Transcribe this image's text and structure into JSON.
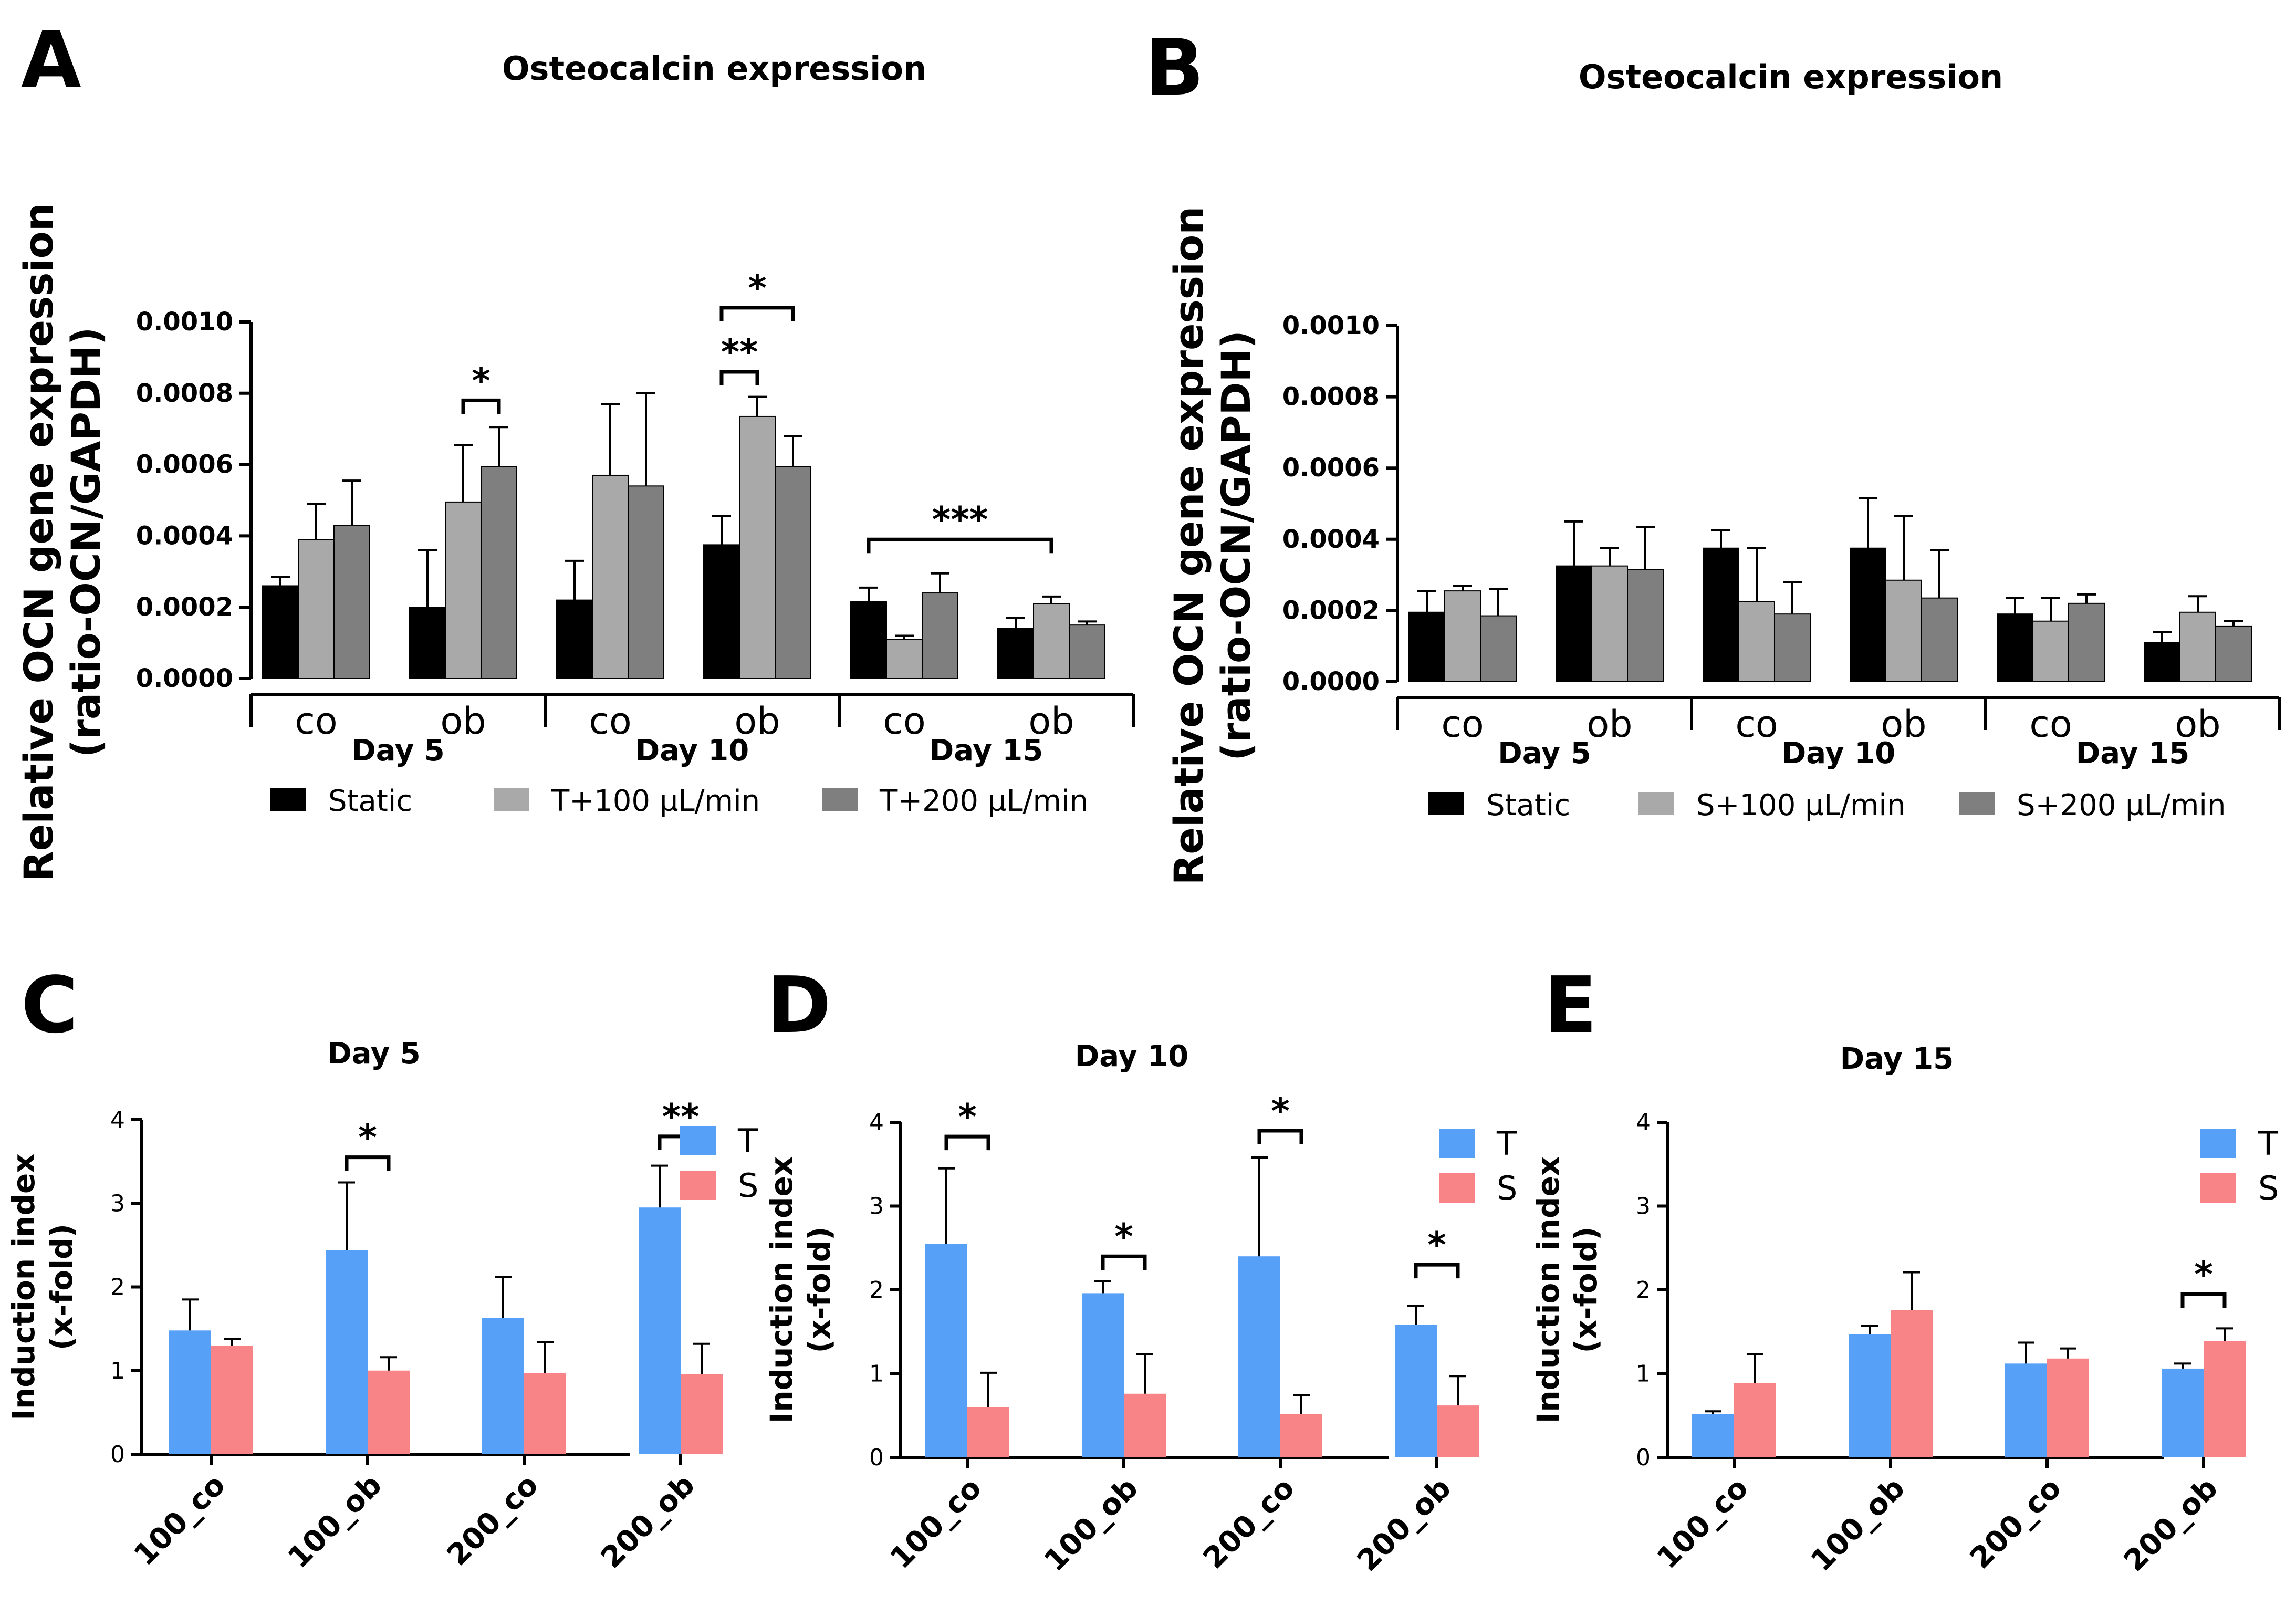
{
  "colors": {
    "static": "#000000",
    "light_gray": "#a9a9a9",
    "dark_gray": "#7f7f7f",
    "T": "#56a0f8",
    "S": "#f98487"
  },
  "panels": {
    "A": {
      "letter": "A"
    },
    "B": {
      "letter": "B"
    },
    "C": {
      "letter": "C"
    },
    "D": {
      "letter": "D"
    },
    "E": {
      "letter": "E"
    }
  },
  "chart_data": [
    {
      "id": "A",
      "type": "bar",
      "title": "Osteocalcin expression",
      "ylabel": [
        "Relative OCN gene expression",
        "(ratio-OCN/GAPDH)"
      ],
      "ylim": [
        0,
        0.001
      ],
      "yticks": [
        "0.0000",
        "0.0002",
        "0.0004",
        "0.0006",
        "0.0008",
        "0.0010"
      ],
      "categories": [
        "co",
        "ob",
        "co",
        "ob",
        "co",
        "ob"
      ],
      "days": [
        "Day 5",
        "Day 10",
        "Day 15"
      ],
      "series": [
        {
          "name": "Static",
          "color": "#000000",
          "values": [
            0.00026,
            0.0002,
            0.00022,
            0.000375,
            0.000215,
            0.00014
          ],
          "errors": [
            2.5e-05,
            0.00016,
            0.00011,
            8e-05,
            4e-05,
            3e-05
          ]
        },
        {
          "name": "T+100 µL/min",
          "color": "#a9a9a9",
          "values": [
            0.00039,
            0.000495,
            0.00057,
            0.000735,
            0.00011,
            0.00021
          ],
          "errors": [
            0.0001,
            0.00016,
            0.0002,
            5.5e-05,
            1e-05,
            2e-05
          ]
        },
        {
          "name": "T+200 µL/min",
          "color": "#7f7f7f",
          "values": [
            0.00043,
            0.000595,
            0.00054,
            0.000595,
            0.00024,
            0.00015
          ],
          "errors": [
            0.000125,
            0.00011,
            0.00026,
            8.5e-05,
            5.5e-05,
            1e-05
          ]
        }
      ],
      "annotations": [
        {
          "label": "*",
          "category": 1,
          "from": 1,
          "to": 2,
          "y": 0.00078
        },
        {
          "label": "**",
          "category": 3,
          "from": 0,
          "to": 1,
          "y": 0.00086
        },
        {
          "label": "*",
          "category": 3,
          "from": 0,
          "to": 2,
          "y": 0.00104
        },
        {
          "label": "***",
          "category": 4,
          "from": 0,
          "to": 8,
          "y": 0.00039
        }
      ]
    },
    {
      "id": "B",
      "type": "bar",
      "title": "Osteocalcin expression",
      "ylabel": [
        "Relative OCN gene expression",
        "(ratio-OCN/GAPDH)"
      ],
      "ylim": [
        0,
        0.001
      ],
      "yticks": [
        "0.0000",
        "0.0002",
        "0.0004",
        "0.0006",
        "0.0008",
        "0.0010"
      ],
      "categories": [
        "co",
        "ob",
        "co",
        "ob",
        "co",
        "ob"
      ],
      "days": [
        "Day 5",
        "Day 10",
        "Day 15"
      ],
      "series": [
        {
          "name": "Static",
          "color": "#000000",
          "values": [
            0.000195,
            0.000325,
            0.000375,
            0.000375,
            0.00019,
            0.00011
          ],
          "errors": [
            6e-05,
            0.000125,
            5e-05,
            0.00014,
            4.5e-05,
            3e-05
          ]
        },
        {
          "name": "S+100 µL/min",
          "color": "#a9a9a9",
          "values": [
            0.000255,
            0.000325,
            0.000225,
            0.000285,
            0.00017,
            0.000195
          ],
          "errors": [
            1.5e-05,
            5e-05,
            0.00015,
            0.00018,
            6.5e-05,
            4.5e-05
          ]
        },
        {
          "name": "S+200 µL/min",
          "color": "#7f7f7f",
          "values": [
            0.000185,
            0.000315,
            0.00019,
            0.000235,
            0.00022,
            0.000155
          ],
          "errors": [
            7.5e-05,
            0.00012,
            9e-05,
            0.000135,
            2.5e-05,
            1.5e-05
          ]
        }
      ],
      "annotations": []
    },
    {
      "id": "C",
      "type": "bar",
      "title": "Day 5",
      "ylabel": [
        "Induction index",
        "(x-fold)"
      ],
      "ylim": [
        0,
        4
      ],
      "yticks": [
        "0",
        "1",
        "2",
        "3",
        "4"
      ],
      "categories": [
        "100_co",
        "100_ob",
        "200_co",
        "200_ob"
      ],
      "series": [
        {
          "name": "T",
          "color": "#56a0f8",
          "values": [
            1.48,
            2.44,
            1.63,
            2.95
          ],
          "errors": [
            0.37,
            0.81,
            0.49,
            0.5
          ]
        },
        {
          "name": "S",
          "color": "#f98487",
          "values": [
            1.3,
            1.0,
            0.97,
            0.96
          ],
          "errors": [
            0.08,
            0.16,
            0.37,
            0.36
          ]
        }
      ],
      "annotations": [
        {
          "label": "*",
          "category": 1,
          "y": 3.55
        },
        {
          "label": "**",
          "category": 3,
          "y": 3.8
        }
      ]
    },
    {
      "id": "D",
      "type": "bar",
      "title": "Day 10",
      "ylabel": [
        "Induction index",
        "(x-fold)"
      ],
      "ylim": [
        0,
        4
      ],
      "yticks": [
        "0",
        "1",
        "2",
        "3",
        "4"
      ],
      "categories": [
        "100_co",
        "100_ob",
        "200_co",
        "200_ob"
      ],
      "series": [
        {
          "name": "T",
          "color": "#56a0f8",
          "values": [
            2.55,
            1.96,
            2.4,
            1.58
          ],
          "errors": [
            0.9,
            0.14,
            1.18,
            0.23
          ]
        },
        {
          "name": "S",
          "color": "#f98487",
          "values": [
            0.6,
            0.76,
            0.52,
            0.62
          ],
          "errors": [
            0.41,
            0.47,
            0.22,
            0.35
          ]
        }
      ],
      "annotations": [
        {
          "label": "*",
          "category": 0,
          "y": 3.83
        },
        {
          "label": "*",
          "category": 1,
          "y": 2.4
        },
        {
          "label": "*",
          "category": 2,
          "y": 3.9
        },
        {
          "label": "*",
          "category": 3,
          "y": 2.3
        }
      ]
    },
    {
      "id": "E",
      "type": "bar",
      "title": "Day 15",
      "ylabel": [
        "Induction index",
        "(x-fold)"
      ],
      "ylim": [
        0,
        4
      ],
      "yticks": [
        "0",
        "1",
        "2",
        "3",
        "4"
      ],
      "categories": [
        "100_co",
        "100_ob",
        "200_co",
        "200_ob"
      ],
      "series": [
        {
          "name": "T",
          "color": "#56a0f8",
          "values": [
            0.52,
            1.47,
            1.12,
            1.06
          ],
          "errors": [
            0.03,
            0.1,
            0.25,
            0.06
          ]
        },
        {
          "name": "S",
          "color": "#f98487",
          "values": [
            0.89,
            1.76,
            1.18,
            1.39
          ],
          "errors": [
            0.34,
            0.45,
            0.12,
            0.15
          ]
        }
      ],
      "annotations": [
        {
          "label": "*",
          "category": 3,
          "y": 1.95
        }
      ]
    }
  ]
}
